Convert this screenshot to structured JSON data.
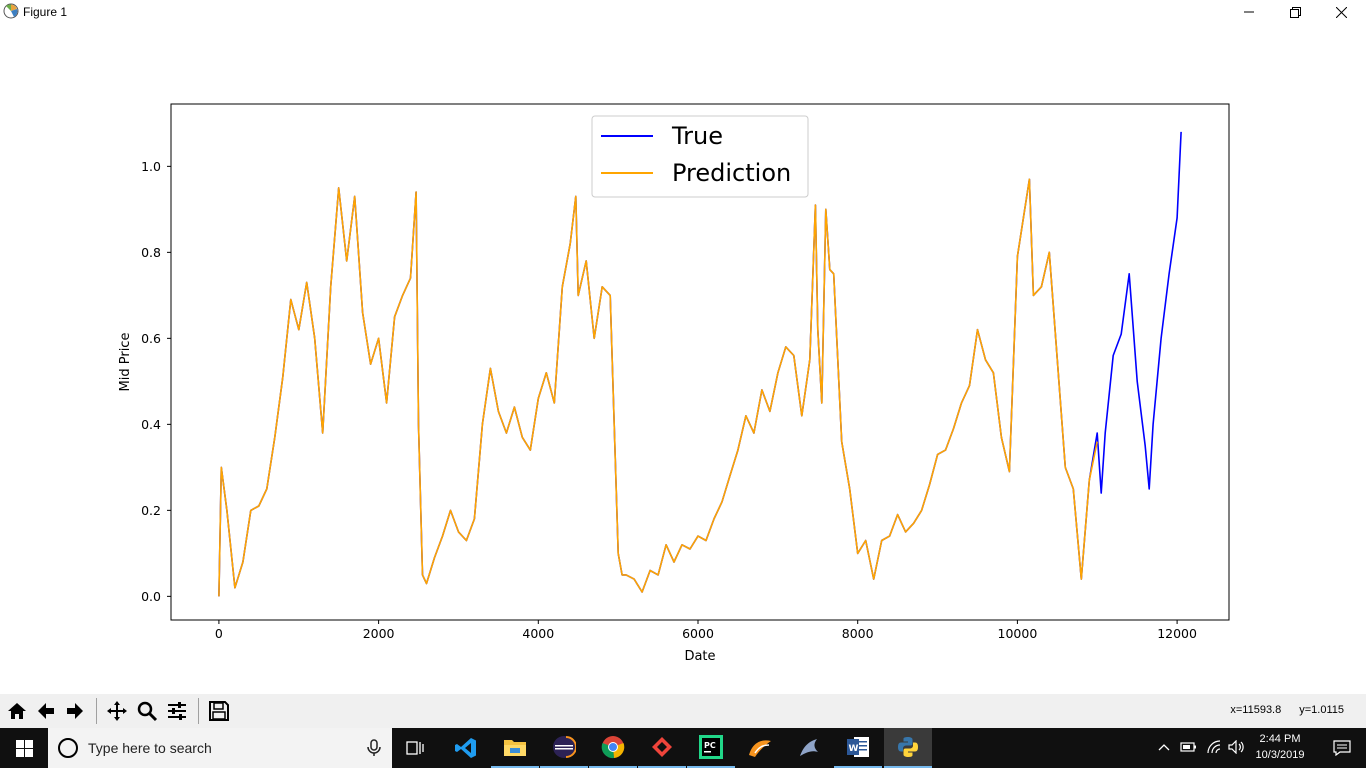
{
  "window": {
    "title": "Figure 1"
  },
  "toolbar": {
    "buttons": [
      "home-icon",
      "back-arrow-icon",
      "forward-arrow-icon",
      "pan-icon",
      "zoom-icon",
      "configure-subplots-icon",
      "save-icon"
    ],
    "coords": {
      "x": "x=11593.8",
      "y": "y=1.0115"
    }
  },
  "taskbar": {
    "search_placeholder": "Type here to search",
    "time": "2:44 PM",
    "date": "10/3/2019",
    "apps": [
      "task-view-icon",
      "vscode-icon",
      "file-explorer-icon",
      "eclipse-icon",
      "chrome-icon",
      "anydesk-icon",
      "pycharm-icon",
      "filezilla-icon",
      "mysql-workbench-icon",
      "word-icon",
      "python-icon"
    ]
  },
  "chart_data": {
    "type": "line",
    "title": "",
    "xlabel": "Date",
    "ylabel": "Mid Price",
    "xlim": [
      -600,
      12650
    ],
    "ylim": [
      -0.055,
      1.145
    ],
    "xticks": [
      0,
      2000,
      4000,
      6000,
      8000,
      10000,
      12000
    ],
    "yticks": [
      0.0,
      0.2,
      0.4,
      0.6,
      0.8,
      1.0
    ],
    "ytick_labels": [
      "0.0",
      "0.2",
      "0.4",
      "0.6",
      "0.8",
      "1.0"
    ],
    "grid": false,
    "legend_position": "top-center",
    "series": [
      {
        "name": "True",
        "color": "#0000ff",
        "x": [
          0,
          30,
          100,
          200,
          300,
          400,
          500,
          600,
          700,
          800,
          900,
          1000,
          1100,
          1200,
          1300,
          1400,
          1500,
          1600,
          1700,
          1800,
          1900,
          2000,
          2100,
          2200,
          2300,
          2400,
          2470,
          2500,
          2550,
          2600,
          2700,
          2800,
          2900,
          3000,
          3100,
          3200,
          3300,
          3400,
          3500,
          3600,
          3700,
          3800,
          3900,
          4000,
          4100,
          4200,
          4300,
          4400,
          4470,
          4500,
          4600,
          4700,
          4800,
          4900,
          5000,
          5050,
          5100,
          5200,
          5300,
          5400,
          5500,
          5600,
          5700,
          5800,
          5900,
          6000,
          6100,
          6200,
          6300,
          6400,
          6500,
          6600,
          6700,
          6800,
          6900,
          7000,
          7100,
          7200,
          7300,
          7400,
          7470,
          7500,
          7550,
          7600,
          7650,
          7700,
          7800,
          7900,
          8000,
          8100,
          8200,
          8300,
          8400,
          8500,
          8600,
          8700,
          8800,
          8900,
          9000,
          9100,
          9200,
          9300,
          9400,
          9500,
          9600,
          9700,
          9800,
          9900,
          10000,
          10100,
          10150,
          10200,
          10300,
          10400,
          10500,
          10600,
          10700,
          10800,
          10900,
          11000,
          11050,
          11100,
          11200,
          11300,
          11400,
          11500,
          11600,
          11650,
          11700,
          11800,
          11900,
          12000,
          12050
        ],
        "y": [
          0.0,
          0.3,
          0.2,
          0.02,
          0.08,
          0.2,
          0.21,
          0.25,
          0.37,
          0.51,
          0.69,
          0.62,
          0.73,
          0.6,
          0.38,
          0.72,
          0.95,
          0.78,
          0.93,
          0.66,
          0.54,
          0.6,
          0.45,
          0.65,
          0.7,
          0.74,
          0.94,
          0.4,
          0.05,
          0.03,
          0.09,
          0.14,
          0.2,
          0.15,
          0.13,
          0.18,
          0.4,
          0.53,
          0.43,
          0.38,
          0.44,
          0.37,
          0.34,
          0.46,
          0.52,
          0.45,
          0.72,
          0.82,
          0.93,
          0.7,
          0.78,
          0.6,
          0.72,
          0.7,
          0.1,
          0.05,
          0.05,
          0.04,
          0.01,
          0.06,
          0.05,
          0.12,
          0.08,
          0.12,
          0.11,
          0.14,
          0.13,
          0.18,
          0.22,
          0.28,
          0.34,
          0.42,
          0.38,
          0.48,
          0.43,
          0.52,
          0.58,
          0.56,
          0.42,
          0.55,
          0.91,
          0.62,
          0.45,
          0.9,
          0.76,
          0.75,
          0.36,
          0.25,
          0.1,
          0.13,
          0.04,
          0.13,
          0.14,
          0.19,
          0.15,
          0.17,
          0.2,
          0.26,
          0.33,
          0.34,
          0.39,
          0.45,
          0.49,
          0.62,
          0.55,
          0.52,
          0.37,
          0.29,
          0.79,
          0.91,
          0.97,
          0.7,
          0.72,
          0.8,
          0.55,
          0.3,
          0.25,
          0.04,
          0.27,
          0.38,
          0.24,
          0.38,
          0.56,
          0.61,
          0.75,
          0.5,
          0.35,
          0.25,
          0.4,
          0.6,
          0.75,
          0.88,
          1.08
        ]
      },
      {
        "name": "Prediction",
        "color": "#ffa500",
        "x": [
          0,
          30,
          100,
          200,
          300,
          400,
          500,
          600,
          700,
          800,
          900,
          1000,
          1100,
          1200,
          1300,
          1400,
          1500,
          1600,
          1700,
          1800,
          1900,
          2000,
          2100,
          2200,
          2300,
          2400,
          2470,
          2500,
          2550,
          2600,
          2700,
          2800,
          2900,
          3000,
          3100,
          3200,
          3300,
          3400,
          3500,
          3600,
          3700,
          3800,
          3900,
          4000,
          4100,
          4200,
          4300,
          4400,
          4470,
          4500,
          4600,
          4700,
          4800,
          4900,
          5000,
          5050,
          5100,
          5200,
          5300,
          5400,
          5500,
          5600,
          5700,
          5800,
          5900,
          6000,
          6100,
          6200,
          6300,
          6400,
          6500,
          6600,
          6700,
          6800,
          6900,
          7000,
          7100,
          7200,
          7300,
          7400,
          7470,
          7500,
          7550,
          7600,
          7650,
          7700,
          7800,
          7900,
          8000,
          8100,
          8200,
          8300,
          8400,
          8500,
          8600,
          8700,
          8800,
          8900,
          9000,
          9100,
          9200,
          9300,
          9400,
          9500,
          9600,
          9700,
          9800,
          9900,
          10000,
          10100,
          10150,
          10200,
          10300,
          10400,
          10500,
          10600,
          10700,
          10800,
          10900,
          11000
        ],
        "y": [
          0.0,
          0.3,
          0.2,
          0.02,
          0.08,
          0.2,
          0.21,
          0.25,
          0.37,
          0.51,
          0.69,
          0.62,
          0.73,
          0.6,
          0.38,
          0.72,
          0.95,
          0.78,
          0.93,
          0.66,
          0.54,
          0.6,
          0.45,
          0.65,
          0.7,
          0.74,
          0.94,
          0.4,
          0.05,
          0.03,
          0.09,
          0.14,
          0.2,
          0.15,
          0.13,
          0.18,
          0.4,
          0.53,
          0.43,
          0.38,
          0.44,
          0.37,
          0.34,
          0.46,
          0.52,
          0.45,
          0.72,
          0.82,
          0.93,
          0.7,
          0.78,
          0.6,
          0.72,
          0.7,
          0.1,
          0.05,
          0.05,
          0.04,
          0.01,
          0.06,
          0.05,
          0.12,
          0.08,
          0.12,
          0.11,
          0.14,
          0.13,
          0.18,
          0.22,
          0.28,
          0.34,
          0.42,
          0.38,
          0.48,
          0.43,
          0.52,
          0.58,
          0.56,
          0.42,
          0.55,
          0.91,
          0.62,
          0.45,
          0.9,
          0.76,
          0.75,
          0.36,
          0.25,
          0.1,
          0.13,
          0.04,
          0.13,
          0.14,
          0.19,
          0.15,
          0.17,
          0.2,
          0.26,
          0.33,
          0.34,
          0.39,
          0.45,
          0.49,
          0.62,
          0.55,
          0.52,
          0.37,
          0.29,
          0.79,
          0.91,
          0.97,
          0.7,
          0.72,
          0.8,
          0.55,
          0.3,
          0.25,
          0.04,
          0.27,
          0.36
        ]
      }
    ]
  }
}
